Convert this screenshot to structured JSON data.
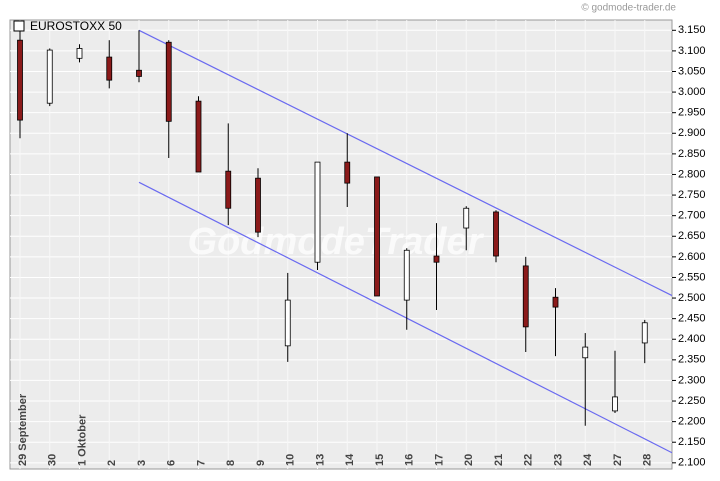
{
  "chart_data": {
    "type": "candlestick",
    "title": "EUROSTOXX 50",
    "source": "© godmode-trader.de",
    "watermark": "GodmodeTrader",
    "categories": [
      "29 September",
      "30",
      "1 Oktober",
      "2",
      "3",
      "6",
      "7",
      "8",
      "9",
      "10",
      "13",
      "14",
      "15",
      "16",
      "17",
      "20",
      "21",
      "22",
      "23",
      "24",
      "27",
      "28"
    ],
    "open": [
      3126,
      2973,
      3082,
      3085,
      3053,
      3121,
      2978,
      2808,
      2791,
      2384,
      2587,
      2830,
      2794,
      2495,
      2602,
      2670,
      2709,
      2578,
      2502,
      2355,
      2226,
      2391
    ],
    "high": [
      3150,
      3106,
      3116,
      3126,
      3150,
      3126,
      2990,
      2924,
      2815,
      2561,
      2830,
      2900,
      2794,
      2621,
      2682,
      2723,
      2713,
      2600,
      2524,
      2415,
      2372,
      2447
    ],
    "low": [
      2888,
      2966,
      3072,
      3009,
      3024,
      2840,
      2806,
      2677,
      2648,
      2345,
      2568,
      2721,
      2505,
      2423,
      2471,
      2616,
      2587,
      2369,
      2359,
      2190,
      2221,
      2342
    ],
    "close": [
      2932,
      3102,
      3106,
      3029,
      3038,
      2929,
      2806,
      2718,
      2660,
      2495,
      2830,
      2779,
      2505,
      2616,
      2587,
      2718,
      2602,
      2430,
      2478,
      2381,
      2260,
      2440
    ],
    "up_color": "#ffffff",
    "down_color": "#8b1a1a",
    "trend_lines": [
      {
        "from": [
          "3",
          3150
        ],
        "to": [
          "28",
          2539
        ],
        "color": "#6a6af0"
      },
      {
        "from": [
          "3",
          2781
        ],
        "to": [
          "28",
          2158
        ],
        "color": "#6a6af0"
      }
    ],
    "ylim": [
      2085,
      3175
    ],
    "yticks": [
      {
        "value": 2100,
        "label": "2.100"
      },
      {
        "value": 2150,
        "label": "2.150"
      },
      {
        "value": 2200,
        "label": "2.200"
      },
      {
        "value": 2250,
        "label": "2.250"
      },
      {
        "value": 2300,
        "label": "2.300"
      },
      {
        "value": 2350,
        "label": "2.350"
      },
      {
        "value": 2400,
        "label": "2.400"
      },
      {
        "value": 2450,
        "label": "2.450"
      },
      {
        "value": 2500,
        "label": "2.500"
      },
      {
        "value": 2550,
        "label": "2.550"
      },
      {
        "value": 2600,
        "label": "2.600"
      },
      {
        "value": 2650,
        "label": "2.650"
      },
      {
        "value": 2700,
        "label": "2.700"
      },
      {
        "value": 2750,
        "label": "2.750"
      },
      {
        "value": 2800,
        "label": "2.800"
      },
      {
        "value": 2850,
        "label": "2.850"
      },
      {
        "value": 2900,
        "label": "2.900"
      },
      {
        "value": 2950,
        "label": "2.950"
      },
      {
        "value": 3000,
        "label": "3.000"
      },
      {
        "value": 3050,
        "label": "3.050"
      },
      {
        "value": 3100,
        "label": "3.100"
      },
      {
        "value": 3150,
        "label": "3.150"
      }
    ],
    "grid": true
  }
}
